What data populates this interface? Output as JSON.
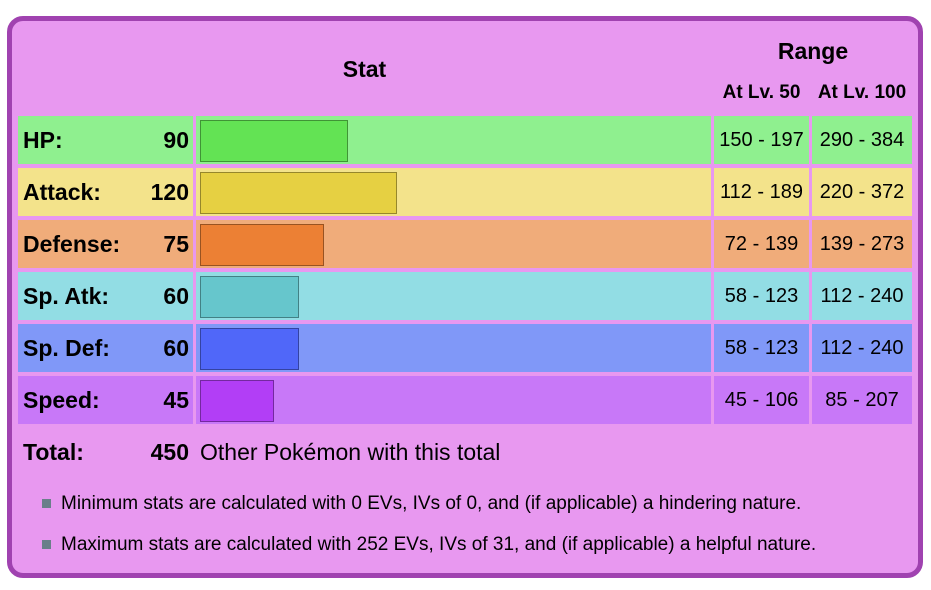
{
  "header": {
    "stat_label": "Stat",
    "range_label": "Range",
    "lv50_label": "At Lv. 50",
    "lv100_label": "At Lv. 100"
  },
  "stats": [
    {
      "key": "hp",
      "label": "HP:",
      "value": "90",
      "bar_fraction": 0.292,
      "range50": "150 - 197",
      "range100": "290 - 384",
      "row_color": "#8ff08f",
      "bar_color": "#63e354",
      "r50_color": "#8ff08f",
      "r100_color": "#8ff08f"
    },
    {
      "key": "attack",
      "label": "Attack:",
      "value": "120",
      "bar_fraction": 0.389,
      "range50": "112 - 189",
      "range100": "220 - 372",
      "row_color": "#f3e38b",
      "bar_color": "#e6d042",
      "r50_color": "#f3e38b",
      "r100_color": "#f3e38b"
    },
    {
      "key": "defense",
      "label": "Defense:",
      "value": "75",
      "bar_fraction": 0.244,
      "range50": "72 - 139",
      "range100": "139 - 273",
      "row_color": "#f0ac7a",
      "bar_color": "#ec8034",
      "r50_color": "#f0ac7a",
      "r100_color": "#f0ac7a"
    },
    {
      "key": "sp_atk",
      "label": "Sp. Atk:",
      "value": "60",
      "bar_fraction": 0.195,
      "range50": "58 - 123",
      "range100": "112 - 240",
      "row_color": "#92dde4",
      "bar_color": "#66c6cc",
      "r50_color": "#92dde4",
      "r100_color": "#92dde4"
    },
    {
      "key": "sp_def",
      "label": "Sp. Def:",
      "value": "60",
      "bar_fraction": 0.195,
      "range50": "58 - 123",
      "range100": "112 - 240",
      "row_color": "#8098f8",
      "bar_color": "#5067f9",
      "r50_color": "#8098f8",
      "r100_color": "#8098f8"
    },
    {
      "key": "speed",
      "label": "Speed:",
      "value": "45",
      "bar_fraction": 0.146,
      "range50": "45 - 106",
      "range100": "85 - 207",
      "row_color": "#c878f8",
      "bar_color": "#b23ef6",
      "r50_color": "#c878f8",
      "r100_color": "#c878f8"
    }
  ],
  "total": {
    "label": "Total:",
    "value": "450",
    "link_text": "Other Pokémon with this total"
  },
  "notes": [
    "Minimum stats are calculated with 0 EVs, IVs of 0, and (if applicable) a hindering nature.",
    "Maximum stats are calculated with 252 EVs, IVs of 31, and (if applicable) a helpful nature."
  ],
  "colors": {
    "frame_border": "#a042b0",
    "frame_fill": "#e898f0",
    "bullet": "#6a7f8a"
  }
}
